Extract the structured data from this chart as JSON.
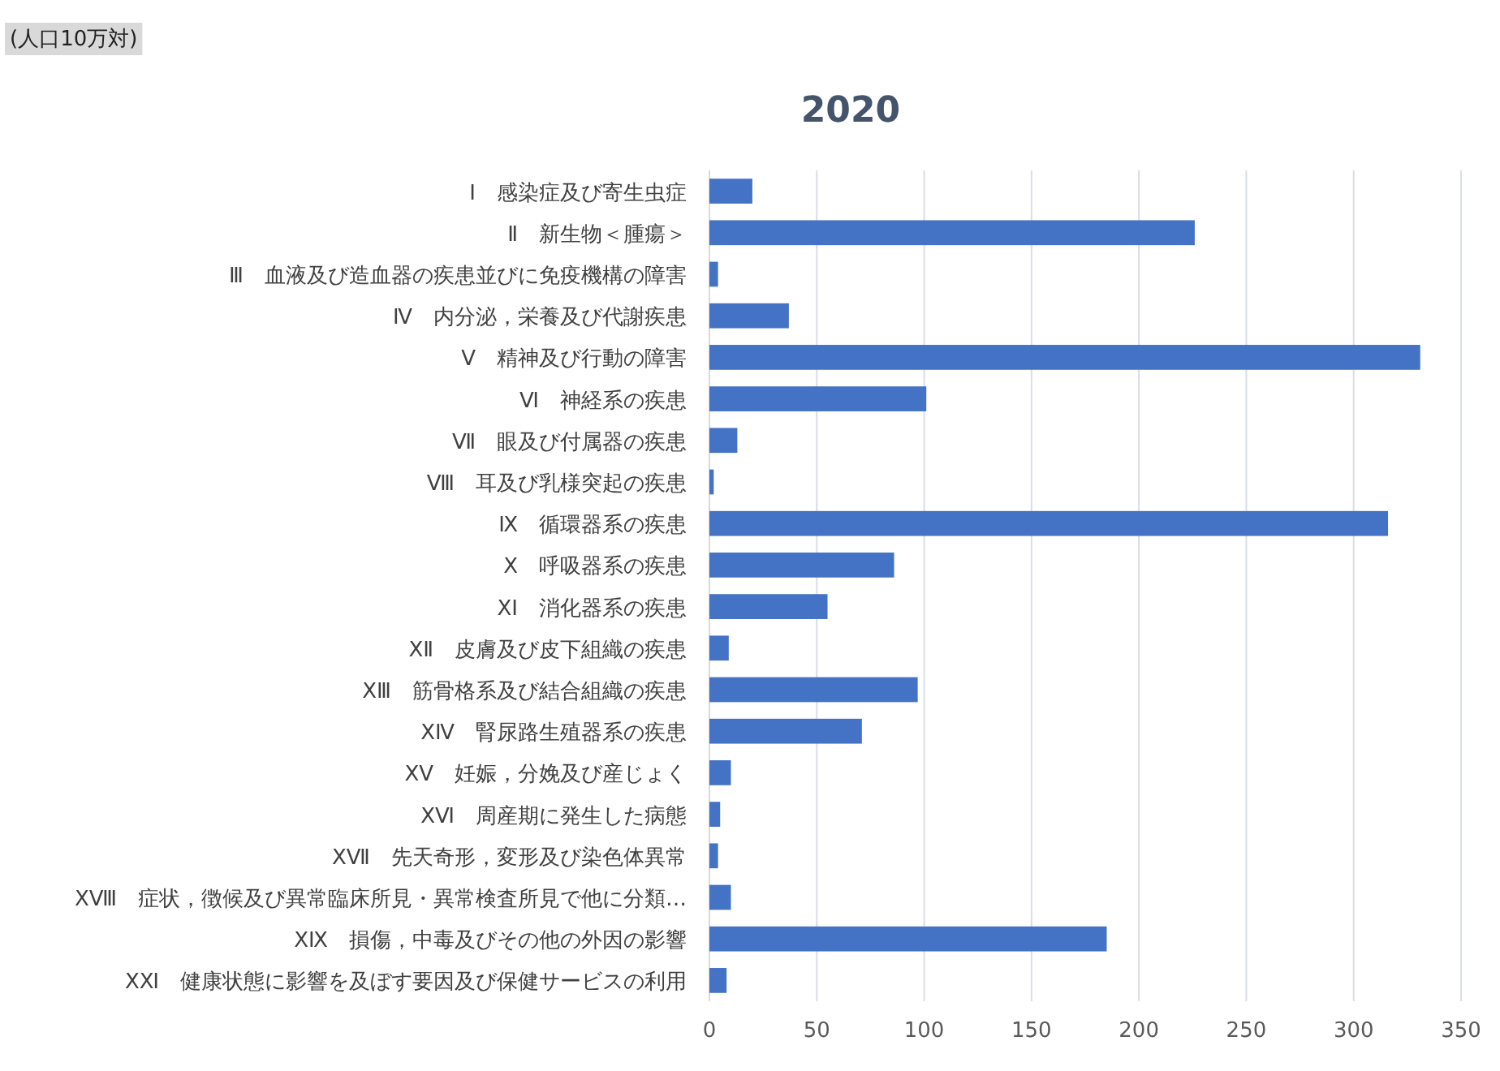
{
  "chart_data": {
    "type": "bar",
    "orientation": "horizontal",
    "title": "2020",
    "annotations": [
      "(人口10万対)"
    ],
    "categories": [
      "Ⅰ　感染症及び寄生虫症",
      "Ⅱ　新生物＜腫瘍＞",
      "Ⅲ　血液及び造血器の疾患並びに免疫機構の障害",
      "Ⅳ　内分泌，栄養及び代謝疾患",
      "Ⅴ　精神及び行動の障害",
      "Ⅵ　神経系の疾患",
      "Ⅶ　眼及び付属器の疾患",
      "Ⅷ　耳及び乳様突起の疾患",
      "Ⅸ　循環器系の疾患",
      "Ⅹ　呼吸器系の疾患",
      "ⅩⅠ　消化器系の疾患",
      "ⅩⅡ　皮膚及び皮下組織の疾患",
      "ⅩⅢ　筋骨格系及び結合組織の疾患",
      "ⅩⅣ　腎尿路生殖器系の疾患",
      "ⅩⅤ　妊娠，分娩及び産じょく",
      "ⅩⅥ　周産期に発生した病態",
      "ⅩⅦ　先天奇形，変形及び染色体異常",
      "ⅩⅧ　症状，徴候及び異常臨床所見・異常検査所見で他に分類…",
      "ⅩⅨ　損傷，中毒及びその他の外因の影響",
      "ⅩⅪ　健康状態に影響を及ぼす要因及び保健サービスの利用"
    ],
    "values": [
      20,
      226,
      4,
      37,
      331,
      101,
      13,
      2,
      316,
      86,
      55,
      9,
      97,
      71,
      10,
      5,
      4,
      10,
      185,
      8
    ],
    "color": "#4472c4",
    "xlim": [
      0,
      350
    ],
    "xticks": [
      0,
      50,
      100,
      150,
      200,
      250,
      300,
      350
    ],
    "grid": "x"
  }
}
